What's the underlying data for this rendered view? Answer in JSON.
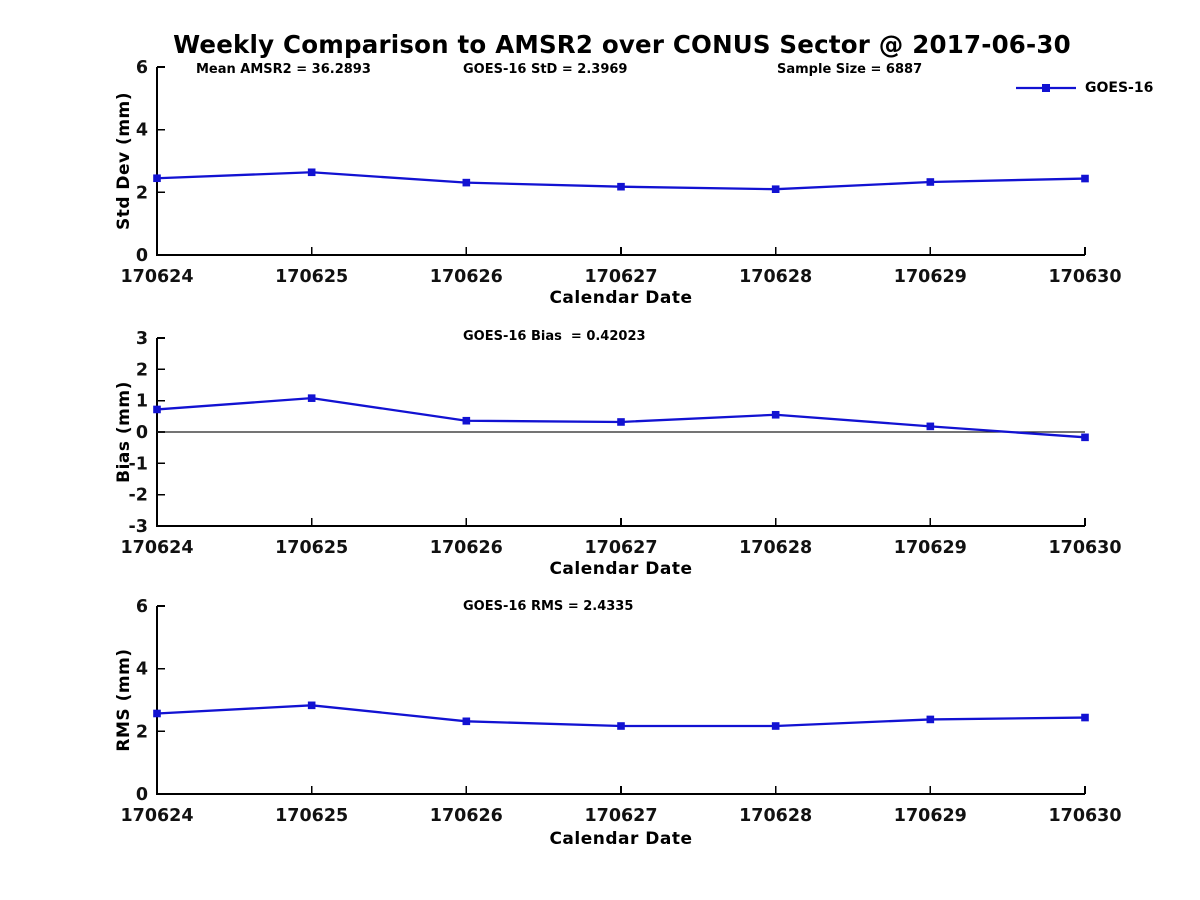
{
  "title": "Weekly Comparison to AMSR2 over CONUS Sector @ 2017-06-30",
  "colors": {
    "line": "#1212d2",
    "axis": "#000000",
    "zero_line": "#222222"
  },
  "legend": {
    "label": "GOES-16"
  },
  "annotations": {
    "mean_amsr2": "Mean AMSR2 = 36.2893",
    "goes16_std": "GOES-16 StD = 2.3969",
    "sample_size": "Sample Size = 6887"
  },
  "chart_data": [
    {
      "type": "line",
      "name": "std-dev",
      "subtitle": "",
      "categories": [
        "170624",
        "170625",
        "170626",
        "170627",
        "170628",
        "170629",
        "170630"
      ],
      "series": [
        {
          "name": "GOES-16",
          "values": [
            2.45,
            2.64,
            2.31,
            2.18,
            2.1,
            2.33,
            2.44
          ]
        }
      ],
      "xlabel": "Calendar Date",
      "ylabel": "Std Dev (mm)",
      "ylim": [
        0,
        6
      ],
      "yticks": [
        0,
        2,
        4,
        6
      ],
      "grid": false,
      "zero_line": false,
      "legend_position": "top-right-outside",
      "marker": "square"
    },
    {
      "type": "line",
      "name": "bias",
      "subtitle": "GOES-16 Bias  = 0.42023",
      "categories": [
        "170624",
        "170625",
        "170626",
        "170627",
        "170628",
        "170629",
        "170630"
      ],
      "series": [
        {
          "name": "GOES-16",
          "values": [
            0.72,
            1.08,
            0.36,
            0.32,
            0.55,
            0.18,
            -0.17
          ]
        }
      ],
      "xlabel": "Calendar Date",
      "ylabel": "Bias (mm)",
      "ylim": [
        -3,
        3
      ],
      "yticks": [
        -3,
        -2,
        -1,
        0,
        1,
        2,
        3
      ],
      "grid": false,
      "zero_line": true,
      "marker": "square"
    },
    {
      "type": "line",
      "name": "rms",
      "subtitle": "GOES-16 RMS = 2.4335",
      "categories": [
        "170624",
        "170625",
        "170626",
        "170627",
        "170628",
        "170629",
        "170630"
      ],
      "series": [
        {
          "name": "GOES-16",
          "values": [
            2.57,
            2.83,
            2.32,
            2.17,
            2.17,
            2.38,
            2.44
          ]
        }
      ],
      "xlabel": "Calendar Date",
      "ylabel": "RMS (mm)",
      "ylim": [
        0,
        6
      ],
      "yticks": [
        0,
        2,
        4,
        6
      ],
      "grid": false,
      "zero_line": false,
      "marker": "square"
    }
  ]
}
